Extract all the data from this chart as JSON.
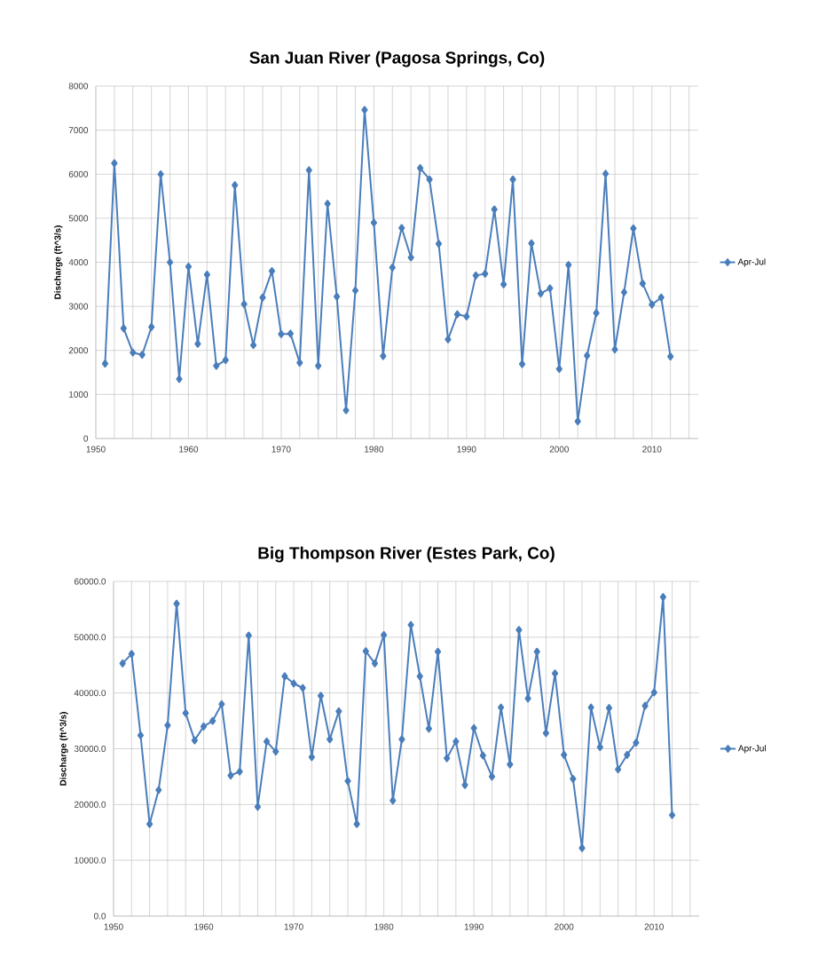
{
  "chart_data": [
    {
      "type": "line",
      "title": "San Juan River (Pagosa Springs, Co)",
      "ylabel": "Discharge (ft^3/s)",
      "x": [
        1951,
        1952,
        1953,
        1954,
        1955,
        1956,
        1957,
        1958,
        1959,
        1960,
        1961,
        1962,
        1963,
        1964,
        1965,
        1966,
        1967,
        1968,
        1969,
        1970,
        1971,
        1972,
        1973,
        1974,
        1975,
        1976,
        1977,
        1978,
        1979,
        1980,
        1981,
        1982,
        1983,
        1984,
        1985,
        1986,
        1987,
        1988,
        1989,
        1990,
        1991,
        1992,
        1993,
        1994,
        1995,
        1996,
        1997,
        1998,
        1999,
        2000,
        2001,
        2002,
        2003,
        2004,
        2005,
        2006,
        2007,
        2008,
        2009,
        2010,
        2011,
        2012
      ],
      "series": [
        {
          "name": "Apr-Jul",
          "color": "#4a7ebb",
          "values": [
            1700,
            6250,
            2500,
            1950,
            1900,
            2530,
            6000,
            4000,
            1350,
            3900,
            2150,
            3720,
            1650,
            1780,
            5750,
            3050,
            2120,
            3200,
            3800,
            2370,
            2380,
            1720,
            6090,
            1650,
            5330,
            3220,
            640,
            3360,
            7460,
            4900,
            1870,
            3880,
            4780,
            4110,
            6140,
            5880,
            4420,
            2250,
            2820,
            2770,
            3700,
            3740,
            5200,
            3500,
            5880,
            1690,
            4430,
            3290,
            3410,
            1580,
            3940,
            390,
            1880,
            2850,
            6010,
            2020,
            3320,
            4770,
            3520,
            3040,
            3200,
            1860
          ]
        }
      ],
      "xlim": [
        1950,
        2015
      ],
      "ylim": [
        0,
        8000
      ],
      "xticks": [
        1950,
        {
          "value": 1952,
          "label": null
        },
        {
          "value": 1954,
          "label": null
        },
        {
          "value": 1956,
          "label": null
        },
        {
          "value": 1958,
          "label": null
        },
        1960,
        {
          "value": 1962,
          "label": null
        },
        {
          "value": 1964,
          "label": null
        },
        {
          "value": 1966,
          "label": null
        },
        {
          "value": 1968,
          "label": null
        },
        1970,
        {
          "value": 1972,
          "label": null
        },
        {
          "value": 1974,
          "label": null
        },
        {
          "value": 1976,
          "label": null
        },
        {
          "value": 1978,
          "label": null
        },
        1980,
        {
          "value": 1982,
          "label": null
        },
        {
          "value": 1984,
          "label": null
        },
        {
          "value": 1986,
          "label": null
        },
        {
          "value": 1988,
          "label": null
        },
        1990,
        {
          "value": 1992,
          "label": null
        },
        {
          "value": 1994,
          "label": null
        },
        {
          "value": 1996,
          "label": null
        },
        {
          "value": 1998,
          "label": null
        },
        2000,
        {
          "value": 2002,
          "label": null
        },
        {
          "value": 2004,
          "label": null
        },
        {
          "value": 2006,
          "label": null
        },
        {
          "value": 2008,
          "label": null
        },
        2010,
        {
          "value": 2012,
          "label": null
        },
        {
          "value": 2014,
          "label": null
        }
      ],
      "yticks": [
        0,
        1000,
        2000,
        3000,
        4000,
        5000,
        6000,
        7000,
        8000
      ],
      "grid": true,
      "legend": "right",
      "marker": "diamond"
    },
    {
      "type": "line",
      "title": "Big Thompson River (Estes Park, Co)",
      "ylabel": "Discharge (ft^3/s)",
      "x": [
        1951,
        1952,
        1953,
        1954,
        1955,
        1956,
        1957,
        1958,
        1959,
        1960,
        1961,
        1962,
        1963,
        1964,
        1965,
        1966,
        1967,
        1968,
        1969,
        1970,
        1971,
        1972,
        1973,
        1974,
        1975,
        1976,
        1977,
        1978,
        1979,
        1980,
        1981,
        1982,
        1983,
        1984,
        1985,
        1986,
        1987,
        1988,
        1989,
        1990,
        1991,
        1992,
        1993,
        1994,
        1995,
        1996,
        1997,
        1998,
        1999,
        2000,
        2001,
        2002,
        2003,
        2004,
        2005,
        2006,
        2007,
        2008,
        2009,
        2010,
        2011,
        2012
      ],
      "series": [
        {
          "name": "Apr-Jul",
          "color": "#4a7ebb",
          "values": [
            45300,
            47000,
            32400,
            16500,
            22600,
            34200,
            56000,
            36400,
            31500,
            34000,
            35000,
            38000,
            25200,
            25900,
            50300,
            19600,
            31300,
            29500,
            43000,
            41700,
            40900,
            28500,
            39500,
            31700,
            36700,
            24200,
            16500,
            47500,
            45300,
            50400,
            20700,
            31700,
            52200,
            43000,
            33600,
            47400,
            28300,
            31300,
            23500,
            33700,
            28800,
            25000,
            37400,
            27200,
            51300,
            39000,
            47400,
            32800,
            43500,
            28900,
            24600,
            12200,
            37400,
            30300,
            37300,
            26300,
            28900,
            31100,
            37700,
            40100,
            57200,
            18100
          ]
        }
      ],
      "xlim": [
        1950,
        2015
      ],
      "ylim": [
        0,
        60000
      ],
      "xticks": [
        1950,
        {
          "value": 1952,
          "label": null
        },
        {
          "value": 1954,
          "label": null
        },
        {
          "value": 1956,
          "label": null
        },
        {
          "value": 1958,
          "label": null
        },
        1960,
        {
          "value": 1962,
          "label": null
        },
        {
          "value": 1964,
          "label": null
        },
        {
          "value": 1966,
          "label": null
        },
        {
          "value": 1968,
          "label": null
        },
        1970,
        {
          "value": 1972,
          "label": null
        },
        {
          "value": 1974,
          "label": null
        },
        {
          "value": 1976,
          "label": null
        },
        {
          "value": 1978,
          "label": null
        },
        1980,
        {
          "value": 1982,
          "label": null
        },
        {
          "value": 1984,
          "label": null
        },
        {
          "value": 1986,
          "label": null
        },
        {
          "value": 1988,
          "label": null
        },
        1990,
        {
          "value": 1992,
          "label": null
        },
        {
          "value": 1994,
          "label": null
        },
        {
          "value": 1996,
          "label": null
        },
        {
          "value": 1998,
          "label": null
        },
        2000,
        {
          "value": 2002,
          "label": null
        },
        {
          "value": 2004,
          "label": null
        },
        {
          "value": 2006,
          "label": null
        },
        {
          "value": 2008,
          "label": null
        },
        2010,
        {
          "value": 2012,
          "label": null
        },
        {
          "value": 2014,
          "label": null
        }
      ],
      "yticks": [
        {
          "value": 0,
          "label": "0.0"
        },
        {
          "value": 10000,
          "label": "10000.0"
        },
        {
          "value": 20000,
          "label": "20000.0"
        },
        {
          "value": 30000,
          "label": "30000.0"
        },
        {
          "value": 40000,
          "label": "40000.0"
        },
        {
          "value": 50000,
          "label": "50000.0"
        },
        {
          "value": 60000,
          "label": "60000.0"
        }
      ],
      "grid": true,
      "legend": "right",
      "marker": "diamond"
    }
  ]
}
